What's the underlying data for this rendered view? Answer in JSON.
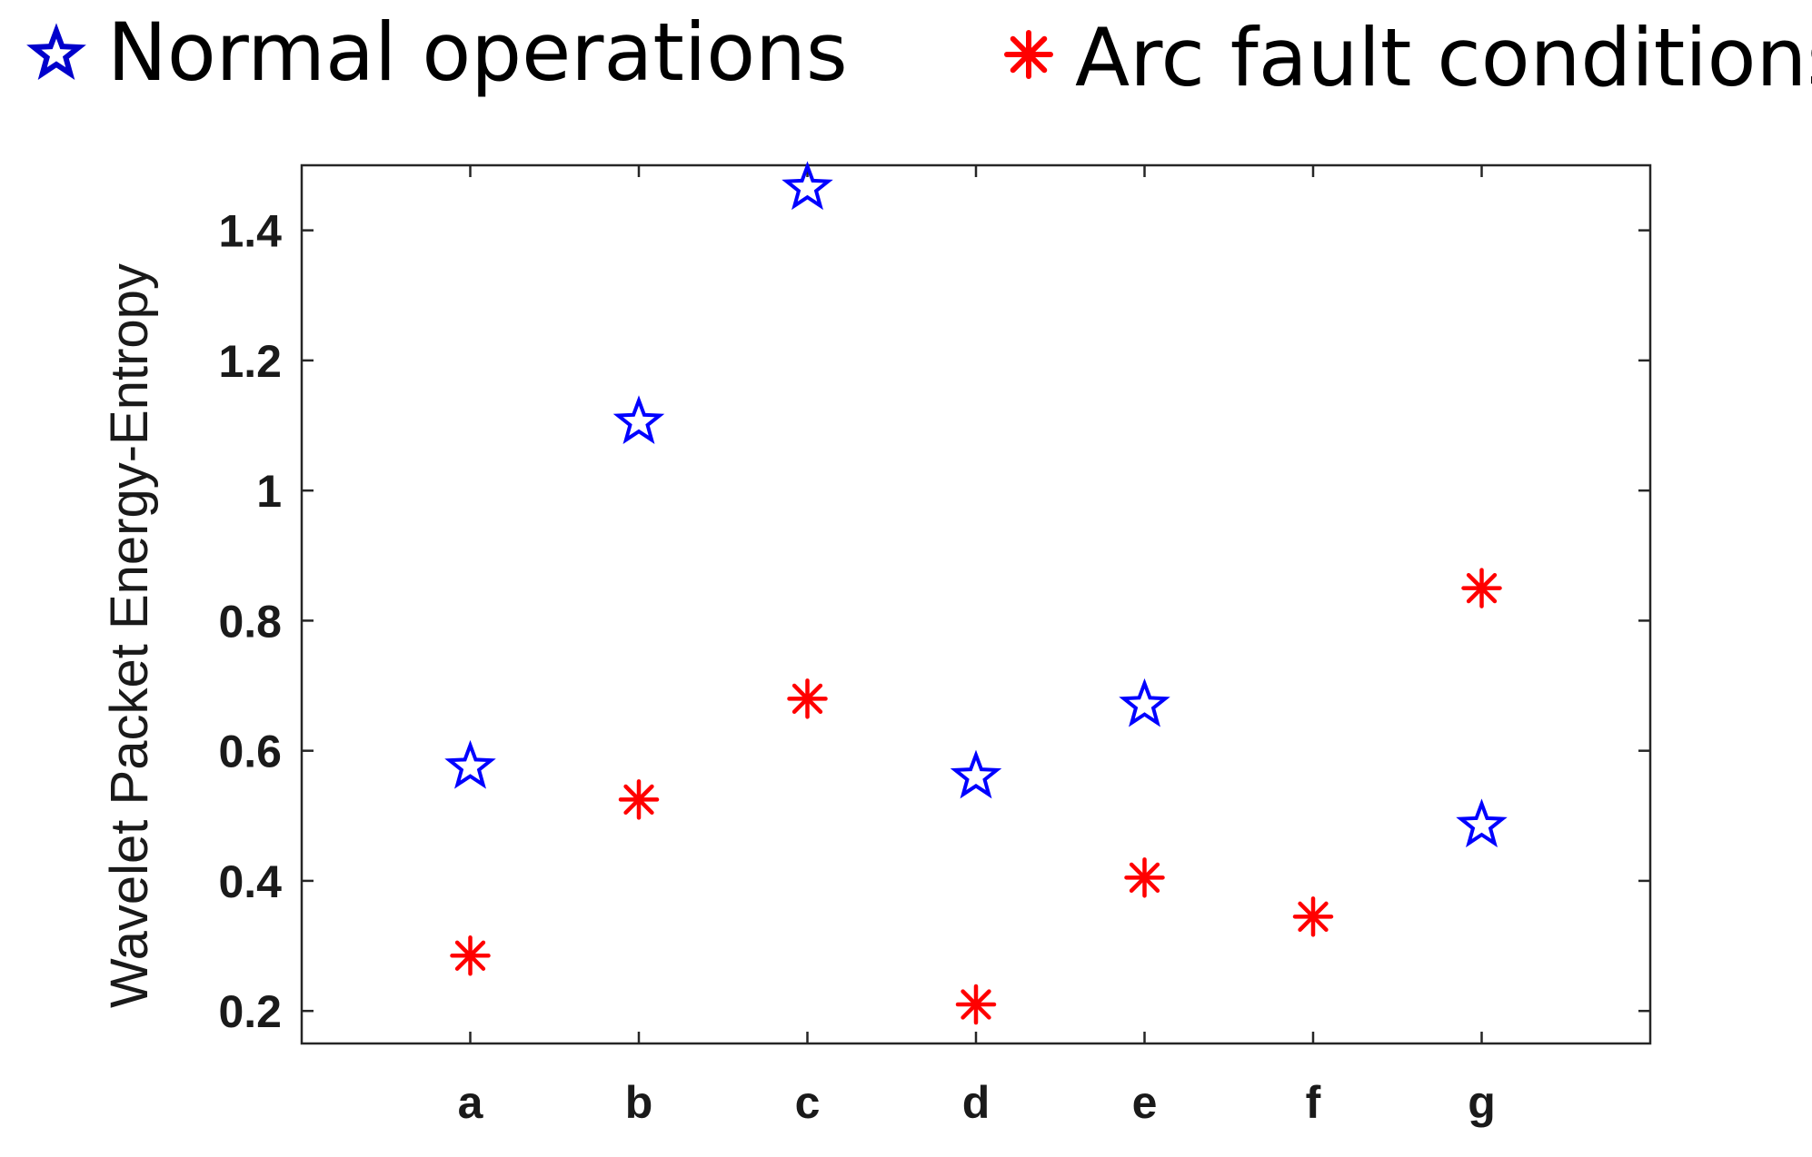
{
  "chart_data": {
    "type": "scatter",
    "title": "",
    "xlabel": "",
    "ylabel": "Wavelet Packet Energy-Entropy",
    "categories": [
      "a",
      "b",
      "c",
      "d",
      "e",
      "f",
      "g"
    ],
    "xlim": [
      0,
      8
    ],
    "ylim": [
      0.15,
      1.5
    ],
    "yticks": [
      0.2,
      0.4,
      0.6,
      0.8,
      1,
      1.2,
      1.4
    ],
    "ytick_labels": [
      "0.2",
      "0.4",
      "0.6",
      "0.8",
      "1",
      "1.2",
      "1.4"
    ],
    "grid": false,
    "legend_position": "top",
    "series": [
      {
        "name": "Normal operations",
        "marker": "star",
        "color": "#0000ff",
        "values": [
          0.575,
          1.105,
          1.465,
          0.56,
          0.67,
          null,
          0.485
        ]
      },
      {
        "name": "Arc fault conditions",
        "marker": "asterisk",
        "color": "#ff0000",
        "values": [
          0.285,
          0.525,
          0.68,
          0.21,
          0.405,
          0.345,
          0.85
        ]
      }
    ]
  },
  "colors": {
    "normal_legend_icon": "#0000cc",
    "fault_legend_icon": "#ff0000",
    "axes": "#262626"
  }
}
